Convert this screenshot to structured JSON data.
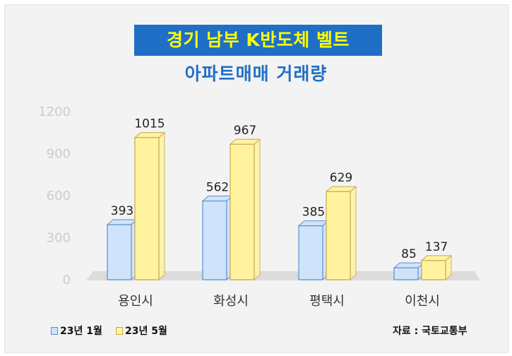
{
  "title_line1": "경기 남부 K반도체 벨트",
  "title_line2": "아파트매매 거래량",
  "source": "자료 : 국토교통부",
  "chart_data": {
    "type": "bar",
    "categories": [
      "용인시",
      "화성시",
      "평택시",
      "이천시"
    ],
    "series": [
      {
        "name": "23년 1월",
        "values": [
          393,
          562,
          385,
          85
        ],
        "fill": "#cfe3fb",
        "stroke": "#5b8fce"
      },
      {
        "name": "23년 5월",
        "values": [
          1015,
          967,
          629,
          137
        ],
        "fill": "#fff3a0",
        "stroke": "#c9a84a"
      }
    ],
    "yticks": [
      0,
      300,
      600,
      900,
      1200
    ],
    "ylim": [
      0,
      1200
    ],
    "legend_position": "bottom-left"
  }
}
